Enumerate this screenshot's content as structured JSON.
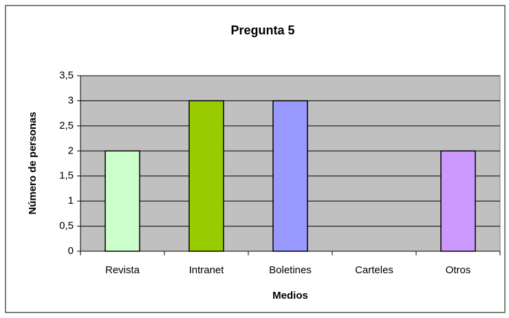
{
  "chart_data": {
    "type": "bar",
    "title": "Pregunta 5",
    "x_label": "Medios",
    "y_label": "Número de personas",
    "categories": [
      "Revista",
      "Intranet",
      "Boletines",
      "Carteles",
      "Otros"
    ],
    "values": [
      2,
      3,
      3,
      0,
      2
    ],
    "colors": [
      "#ccffcc",
      "#99cc00",
      "#9999ff",
      "#ff99cc",
      "#cc99ff"
    ],
    "ylim": [
      0,
      3.5
    ],
    "yticks": [
      0,
      {
        "value": 0.5,
        "label": "0,5"
      },
      1,
      {
        "value": 1.5,
        "label": "1,5"
      },
      2,
      {
        "value": 2.5,
        "label": "2,5"
      },
      3,
      {
        "value": 3.5,
        "label": "3,5"
      }
    ],
    "grid": true
  }
}
